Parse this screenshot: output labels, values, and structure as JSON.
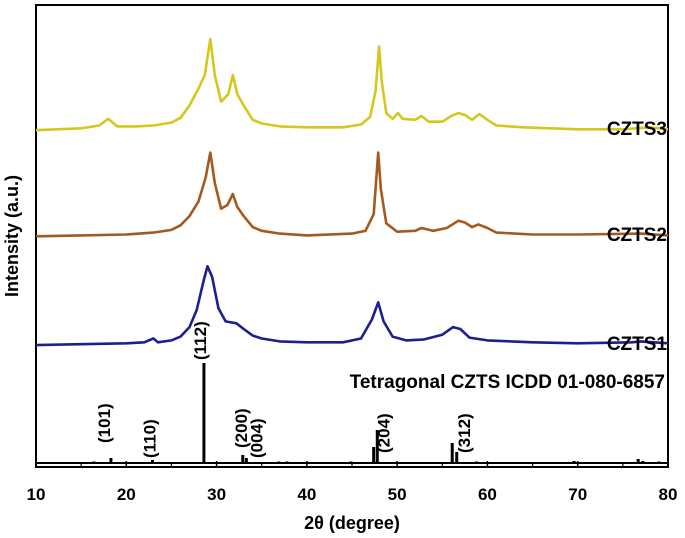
{
  "chart_data": {
    "type": "line",
    "title": "",
    "xlabel": "2θ (degree)",
    "ylabel": "Intensity (a.u.)",
    "xlim": [
      10,
      80
    ],
    "xticks": [
      "10",
      "20",
      "30",
      "40",
      "50",
      "60",
      "70",
      "80"
    ],
    "grid": false,
    "series": [
      {
        "name": "CZTS3",
        "color": "#d4c81e",
        "points": [
          [
            10,
            0.04
          ],
          [
            15,
            0.06
          ],
          [
            17,
            0.09
          ],
          [
            18,
            0.16
          ],
          [
            19,
            0.08
          ],
          [
            21,
            0.08
          ],
          [
            23,
            0.09
          ],
          [
            25,
            0.12
          ],
          [
            26,
            0.17
          ],
          [
            27,
            0.3
          ],
          [
            28,
            0.48
          ],
          [
            28.7,
            0.62
          ],
          [
            29.3,
            1.0
          ],
          [
            29.8,
            0.62
          ],
          [
            30.5,
            0.34
          ],
          [
            31.3,
            0.42
          ],
          [
            31.8,
            0.62
          ],
          [
            32.3,
            0.42
          ],
          [
            33,
            0.3
          ],
          [
            34,
            0.15
          ],
          [
            35,
            0.11
          ],
          [
            37,
            0.08
          ],
          [
            40,
            0.07
          ],
          [
            44,
            0.07
          ],
          [
            46,
            0.1
          ],
          [
            47,
            0.18
          ],
          [
            47.6,
            0.45
          ],
          [
            48,
            0.92
          ],
          [
            48.3,
            0.55
          ],
          [
            48.8,
            0.22
          ],
          [
            49.5,
            0.16
          ],
          [
            50.1,
            0.22
          ],
          [
            50.6,
            0.16
          ],
          [
            52,
            0.15
          ],
          [
            52.7,
            0.19
          ],
          [
            53.5,
            0.13
          ],
          [
            55,
            0.13
          ],
          [
            56,
            0.19
          ],
          [
            56.8,
            0.22
          ],
          [
            57.5,
            0.2
          ],
          [
            58.3,
            0.15
          ],
          [
            59.1,
            0.21
          ],
          [
            60,
            0.15
          ],
          [
            61,
            0.09
          ],
          [
            64,
            0.07
          ],
          [
            70,
            0.05
          ],
          [
            75,
            0.05
          ],
          [
            78,
            0.07
          ],
          [
            80,
            0.05
          ]
        ]
      },
      {
        "name": "CZTS2",
        "color": "#a45a1e",
        "points": [
          [
            10,
            0.04
          ],
          [
            15,
            0.05
          ],
          [
            20,
            0.06
          ],
          [
            23,
            0.08
          ],
          [
            25,
            0.11
          ],
          [
            26,
            0.16
          ],
          [
            27,
            0.26
          ],
          [
            28,
            0.42
          ],
          [
            28.8,
            0.68
          ],
          [
            29.3,
            0.95
          ],
          [
            29.8,
            0.62
          ],
          [
            30.5,
            0.34
          ],
          [
            31.2,
            0.38
          ],
          [
            31.8,
            0.5
          ],
          [
            32.3,
            0.36
          ],
          [
            33,
            0.26
          ],
          [
            34,
            0.14
          ],
          [
            35,
            0.1
          ],
          [
            37,
            0.07
          ],
          [
            40,
            0.05
          ],
          [
            45,
            0.07
          ],
          [
            46.5,
            0.1
          ],
          [
            47.4,
            0.28
          ],
          [
            47.9,
            0.95
          ],
          [
            48.2,
            0.55
          ],
          [
            48.8,
            0.18
          ],
          [
            50,
            0.09
          ],
          [
            52,
            0.1
          ],
          [
            52.7,
            0.13
          ],
          [
            54,
            0.1
          ],
          [
            55.5,
            0.13
          ],
          [
            56.8,
            0.21
          ],
          [
            57.5,
            0.19
          ],
          [
            58.3,
            0.14
          ],
          [
            59,
            0.17
          ],
          [
            60,
            0.13
          ],
          [
            61,
            0.08
          ],
          [
            65,
            0.06
          ],
          [
            70,
            0.06
          ],
          [
            77,
            0.07
          ],
          [
            80,
            0.05
          ]
        ]
      },
      {
        "name": "CZTS1",
        "color": "#1e1e8c",
        "points": [
          [
            10,
            0.03
          ],
          [
            15,
            0.04
          ],
          [
            20,
            0.05
          ],
          [
            22,
            0.06
          ],
          [
            23,
            0.1
          ],
          [
            23.5,
            0.06
          ],
          [
            25,
            0.08
          ],
          [
            26,
            0.12
          ],
          [
            27,
            0.22
          ],
          [
            27.8,
            0.4
          ],
          [
            28.6,
            0.72
          ],
          [
            29,
            0.86
          ],
          [
            29.5,
            0.75
          ],
          [
            30.2,
            0.42
          ],
          [
            31,
            0.28
          ],
          [
            31.6,
            0.27
          ],
          [
            32.2,
            0.26
          ],
          [
            33,
            0.2
          ],
          [
            34,
            0.13
          ],
          [
            35,
            0.1
          ],
          [
            37,
            0.07
          ],
          [
            40,
            0.06
          ],
          [
            44,
            0.06
          ],
          [
            46,
            0.1
          ],
          [
            47.2,
            0.3
          ],
          [
            47.9,
            0.48
          ],
          [
            48.5,
            0.28
          ],
          [
            49.5,
            0.12
          ],
          [
            51,
            0.08
          ],
          [
            53,
            0.09
          ],
          [
            55,
            0.14
          ],
          [
            56.2,
            0.22
          ],
          [
            57,
            0.2
          ],
          [
            58,
            0.11
          ],
          [
            60,
            0.08
          ],
          [
            65,
            0.06
          ],
          [
            70,
            0.05
          ],
          [
            76,
            0.06
          ],
          [
            77,
            0.07
          ],
          [
            80,
            0.05
          ]
        ]
      }
    ],
    "reference": {
      "title": "Tetragonal CZTS ICDD 01-080-6857",
      "sticks": [
        [
          16.4,
          0.01
        ],
        [
          18.3,
          0.05
        ],
        [
          22.9,
          0.03
        ],
        [
          28.6,
          1.0
        ],
        [
          32.9,
          0.08
        ],
        [
          33.3,
          0.05
        ],
        [
          36.9,
          0.01
        ],
        [
          37.8,
          0.01
        ],
        [
          44.9,
          0.01
        ],
        [
          47.4,
          0.16
        ],
        [
          47.8,
          0.33
        ],
        [
          56.1,
          0.2
        ],
        [
          56.6,
          0.11
        ],
        [
          58.8,
          0.01
        ],
        [
          69.6,
          0.02
        ],
        [
          76.7,
          0.04
        ],
        [
          77.2,
          0.02
        ],
        [
          79.0,
          0.01
        ]
      ],
      "labels": [
        {
          "text": "(101)",
          "x": 18.3
        },
        {
          "text": "(110)",
          "x": 22.9
        },
        {
          "text": "(112)",
          "x": 28.6
        },
        {
          "text": "(200)",
          "x": 32.9
        },
        {
          "text": "(004)",
          "x": 33.3
        },
        {
          "text": "(204)",
          "x": 47.6
        },
        {
          "text": "(312)",
          "x": 56.3
        }
      ]
    }
  }
}
